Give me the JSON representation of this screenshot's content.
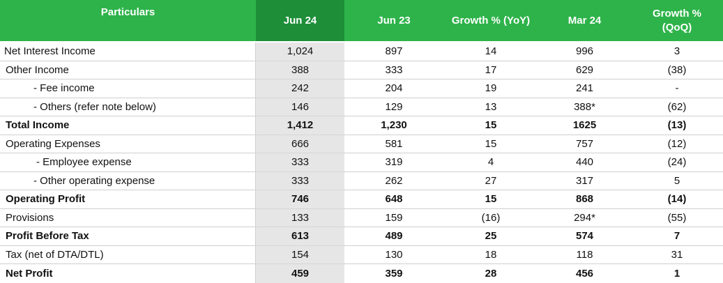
{
  "header": {
    "particulars": "Particulars",
    "cols": [
      "Jun 24",
      "Jun 23",
      "Growth % (YoY)",
      "Mar 24",
      "Growth %\n(QoQ)"
    ]
  },
  "rows": [
    {
      "label": "Net Interest Income",
      "v": [
        "1,024",
        "897",
        "14",
        "996",
        "3"
      ],
      "bold": false,
      "indent": 0
    },
    {
      "label": "Other Income",
      "v": [
        "388",
        "333",
        "17",
        "629",
        "(38)"
      ],
      "bold": false,
      "indent": 1
    },
    {
      "label": "- Fee income",
      "v": [
        "242",
        "204",
        "19",
        "241",
        "-"
      ],
      "bold": false,
      "indent": 2
    },
    {
      "label": "- Others (refer note below)",
      "v": [
        "146",
        "129",
        "13",
        "388*",
        "(62)"
      ],
      "bold": false,
      "indent": 2
    },
    {
      "label": "Total Income",
      "v": [
        "1,412",
        "1,230",
        "15",
        "1625",
        "(13)"
      ],
      "bold": true,
      "indent": 1
    },
    {
      "label": "Operating Expenses",
      "v": [
        "666",
        "581",
        "15",
        "757",
        "(12)"
      ],
      "bold": false,
      "indent": 1
    },
    {
      "label": "-  Employee expense",
      "v": [
        "333",
        "319",
        "4",
        "440",
        "(24)"
      ],
      "bold": false,
      "indent": 3
    },
    {
      "label": "- Other operating expense",
      "v": [
        "333",
        "262",
        "27",
        "317",
        "5"
      ],
      "bold": false,
      "indent": 2
    },
    {
      "label": "Operating Profit",
      "v": [
        "746",
        "648",
        "15",
        "868",
        "(14)"
      ],
      "bold": true,
      "indent": 1
    },
    {
      "label": "Provisions",
      "v": [
        "133",
        "159",
        "(16)",
        "294*",
        "(55)"
      ],
      "bold": false,
      "indent": 1
    },
    {
      "label": "Profit Before Tax",
      "v": [
        "613",
        "489",
        "25",
        "574",
        "7"
      ],
      "bold": true,
      "indent": 1
    },
    {
      "label": "Tax (net of DTA/DTL)",
      "v": [
        "154",
        "130",
        "18",
        "118",
        "31"
      ],
      "bold": false,
      "indent": 1
    },
    {
      "label": "Net Profit",
      "v": [
        "459",
        "359",
        "28",
        "456",
        "1"
      ],
      "bold": true,
      "indent": 1
    }
  ],
  "colors": {
    "header_green": "#2eb34a",
    "header_dark_green": "#1e8e39",
    "highlight_col": "#e6e6e6"
  }
}
